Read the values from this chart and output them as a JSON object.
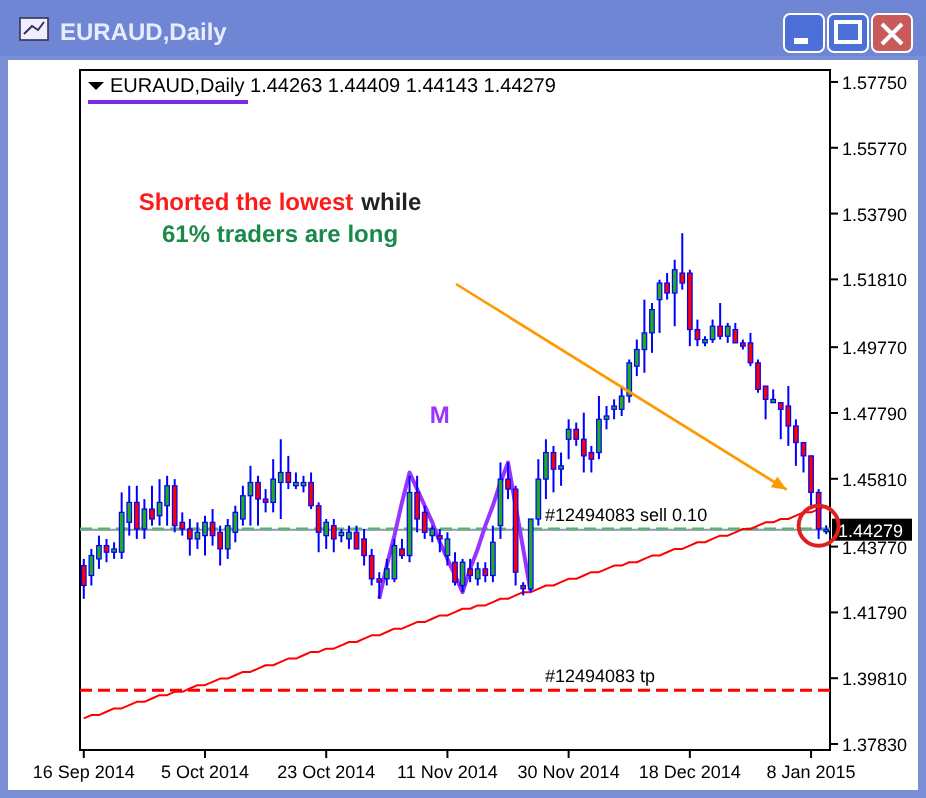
{
  "chart_data": {
    "type": "candlestick",
    "title": "EURAUD,Daily",
    "subtitle": "EURAUD,Daily 1.44263 1.44409 1.44143 1.44279",
    "categories": [
      "16 Sep 2014",
      null,
      null,
      null,
      null,
      null,
      null,
      null,
      null,
      null,
      null,
      null,
      null,
      null,
      null,
      null,
      "5 Oct 2014",
      null,
      null,
      null,
      null,
      null,
      null,
      null,
      null,
      null,
      null,
      null,
      null,
      null,
      null,
      null,
      "23 Oct 2014",
      null,
      null,
      null,
      null,
      null,
      null,
      null,
      null,
      null,
      null,
      null,
      null,
      null,
      null,
      null,
      "11 Nov 2014",
      null,
      null,
      null,
      null,
      null,
      null,
      null,
      null,
      null,
      null,
      null,
      null,
      null,
      null,
      null,
      "30 Nov 2014",
      null,
      null,
      null,
      null,
      null,
      null,
      null,
      null,
      null,
      null,
      null,
      null,
      null,
      null,
      null,
      "18 Dec 2014",
      null,
      null,
      null,
      null,
      null,
      null,
      null,
      null,
      null,
      null,
      null,
      null,
      null,
      null,
      null,
      "8 Jan 2015",
      null,
      null
    ],
    "ylim": [
      1.3765,
      1.5811
    ],
    "yticks": [
      {
        "value": 1.5775,
        "label": "1.57750"
      },
      {
        "value": 1.5577,
        "label": "1.55770"
      },
      {
        "value": 1.5379,
        "label": "1.53790"
      },
      {
        "value": 1.5181,
        "label": "1.51810"
      },
      {
        "value": 1.4977,
        "label": "1.49770"
      },
      {
        "value": 1.4779,
        "label": "1.47790"
      },
      {
        "value": 1.4581,
        "label": "1.45810"
      },
      {
        "value": 1.4377,
        "label": "1.43770"
      },
      {
        "value": 1.4179,
        "label": "1.41790"
      },
      {
        "value": 1.3981,
        "label": "1.39810"
      },
      {
        "value": 1.3783,
        "label": "1.37830"
      }
    ],
    "series": [
      {
        "type": "line",
        "color": "#ff0000",
        "values": [
          1.386,
          1.387,
          1.387,
          1.388,
          1.389,
          1.389,
          1.39,
          1.391,
          1.391,
          1.392,
          1.393,
          1.393,
          1.394,
          1.394,
          1.395,
          1.396,
          1.396,
          1.397,
          1.398,
          1.398,
          1.399,
          1.4,
          1.4,
          1.401,
          1.402,
          1.402,
          1.403,
          1.404,
          1.404,
          1.405,
          1.406,
          1.406,
          1.407,
          1.407,
          1.408,
          1.409,
          1.409,
          1.41,
          1.411,
          1.411,
          1.412,
          1.413,
          1.413,
          1.414,
          1.415,
          1.415,
          1.416,
          1.417,
          1.417,
          1.418,
          1.419,
          1.419,
          1.42,
          1.42,
          1.421,
          1.422,
          1.422,
          1.423,
          1.424,
          1.424,
          1.425,
          1.426,
          1.426,
          1.427,
          1.428,
          1.428,
          1.429,
          1.43,
          1.43,
          1.431,
          1.432,
          1.432,
          1.433,
          1.433,
          1.434,
          1.435,
          1.435,
          1.436,
          1.437,
          1.437,
          1.438,
          1.439,
          1.439,
          1.44,
          1.441,
          1.441,
          1.442,
          1.443,
          1.443,
          1.444,
          1.445,
          1.445,
          1.446,
          1.446,
          1.447,
          1.448,
          1.448,
          1.449,
          1.45
        ]
      },
      {
        "type": "line",
        "color": "#9933ff",
        "values": [
          null,
          null,
          null,
          null,
          null,
          null,
          null,
          null,
          null,
          null,
          null,
          null,
          null,
          null,
          null,
          null,
          null,
          null,
          null,
          null,
          null,
          null,
          null,
          null,
          null,
          null,
          null,
          null,
          null,
          null,
          null,
          null,
          null,
          null,
          null,
          null,
          null,
          null,
          null,
          1.422,
          1.432,
          1.441,
          1.451,
          1.46,
          1.455,
          1.45,
          1.445,
          1.439,
          1.434,
          1.429,
          1.424,
          1.431,
          1.437,
          1.444,
          1.45,
          1.457,
          1.463,
          1.45,
          1.437,
          1.424,
          null,
          null,
          null,
          null,
          null,
          null,
          null,
          null,
          null,
          null,
          null,
          null,
          null,
          null,
          null,
          null,
          null,
          null,
          null,
          null,
          null,
          null,
          null,
          null,
          null,
          null,
          null,
          null,
          null,
          null,
          null,
          null,
          null,
          null,
          null,
          null,
          null,
          null,
          null
        ]
      },
      {
        "type": "candlestick",
        "color": "#0000ff",
        "colors": [
          "#ff0000",
          "#22aa22",
          "#22aa22",
          "#ff0000",
          "#22aa22",
          "#22aa22",
          "#22aa22",
          "#ff0000",
          "#22aa22",
          "#ff0000",
          "#22aa22",
          "#22aa22",
          "#ff0000",
          "#ff0000",
          "#ff0000",
          "#22aa22",
          "#22aa22",
          "#ff0000",
          "#ff0000",
          "#22aa22",
          "#22aa22",
          "#22aa22",
          "#22aa22",
          "#ff0000",
          "#ff0000",
          "#22aa22",
          "#22aa22",
          "#ff0000",
          "#22aa22",
          "#22aa22",
          "#ff0000",
          "#ff0000",
          "#22aa22",
          "#ff0000",
          "#22aa22",
          "#22aa22",
          "#ff0000",
          "#ff0000",
          "#ff0000",
          "#ff0000",
          "#22aa22",
          "#22aa22",
          "#ff0000",
          "#22aa22",
          "#ff0000",
          "#ff0000",
          "#22aa22",
          "#ff0000",
          "#22aa22",
          "#ff0000",
          "#22aa22",
          "#ff0000",
          "#22aa22",
          "#ff0000",
          "#22aa22",
          "#22aa22",
          "#ff0000",
          "#ff0000",
          "#ff0000",
          "#22aa22",
          "#22aa22",
          "#22aa22",
          "#ff0000",
          "#22aa22",
          "#22aa22",
          "#ff0000",
          "#ff0000",
          "#ff0000",
          "#22aa22",
          "#22aa22",
          "#22aa22",
          "#22aa22",
          "#22aa22",
          "#22aa22",
          "#22aa22",
          "#22aa22",
          "#22aa22",
          "#ff0000",
          "#22aa22",
          "#ff0000",
          "#ff0000",
          "#ff0000",
          "#22aa22",
          "#22aa22",
          "#ff0000",
          "#22aa22",
          "#ff0000",
          "#ff0000",
          "#ff0000",
          "#ff0000",
          "#ff0000",
          "#22aa22",
          "#ff0000",
          "#ff0000",
          "#ff0000",
          "#ff0000",
          "#ff0000",
          "#ff0000",
          "#22aa22"
        ],
        "ohlc": [
          [
            1.432,
            1.434,
            1.422,
            1.426
          ],
          [
            1.429,
            1.437,
            1.426,
            1.435
          ],
          [
            1.434,
            1.441,
            1.431,
            1.438
          ],
          [
            1.438,
            1.44,
            1.433,
            1.436
          ],
          [
            1.436,
            1.439,
            1.434,
            1.437
          ],
          [
            1.436,
            1.454,
            1.434,
            1.448
          ],
          [
            1.445,
            1.456,
            1.441,
            1.451
          ],
          [
            1.451,
            1.456,
            1.44,
            1.443
          ],
          [
            1.443,
            1.452,
            1.44,
            1.449
          ],
          [
            1.449,
            1.456,
            1.444,
            1.446
          ],
          [
            1.447,
            1.458,
            1.444,
            1.451
          ],
          [
            1.45,
            1.459,
            1.444,
            1.456
          ],
          [
            1.456,
            1.458,
            1.442,
            1.444
          ],
          [
            1.445,
            1.448,
            1.441,
            1.443
          ],
          [
            1.443,
            1.446,
            1.435,
            1.44
          ],
          [
            1.44,
            1.445,
            1.437,
            1.442
          ],
          [
            1.441,
            1.447,
            1.435,
            1.445
          ],
          [
            1.445,
            1.449,
            1.438,
            1.441
          ],
          [
            1.442,
            1.444,
            1.432,
            1.437
          ],
          [
            1.437,
            1.446,
            1.434,
            1.444
          ],
          [
            1.442,
            1.45,
            1.439,
            1.448
          ],
          [
            1.446,
            1.456,
            1.444,
            1.453
          ],
          [
            1.453,
            1.462,
            1.444,
            1.457
          ],
          [
            1.457,
            1.459,
            1.444,
            1.452
          ],
          [
            1.452,
            1.455,
            1.448,
            1.451
          ],
          [
            1.451,
            1.464,
            1.448,
            1.458
          ],
          [
            1.457,
            1.47,
            1.446,
            1.46
          ],
          [
            1.46,
            1.465,
            1.455,
            1.457
          ],
          [
            1.456,
            1.46,
            1.455,
            1.457
          ],
          [
            1.456,
            1.459,
            1.454,
            1.457
          ],
          [
            1.457,
            1.46,
            1.449,
            1.45
          ],
          [
            1.45,
            1.451,
            1.436,
            1.442
          ],
          [
            1.441,
            1.446,
            1.437,
            1.445
          ],
          [
            1.444,
            1.446,
            1.436,
            1.44
          ],
          [
            1.441,
            1.443,
            1.439,
            1.442
          ],
          [
            1.44,
            1.444,
            1.437,
            1.442
          ],
          [
            1.442,
            1.444,
            1.437,
            1.437
          ],
          [
            1.44,
            1.443,
            1.432,
            1.435
          ],
          [
            1.435,
            1.437,
            1.426,
            1.428
          ],
          [
            1.428,
            1.43,
            1.422,
            1.427
          ],
          [
            1.428,
            1.434,
            1.426,
            1.431
          ],
          [
            1.428,
            1.44,
            1.427,
            1.438
          ],
          [
            1.437,
            1.44,
            1.434,
            1.435
          ],
          [
            1.435,
            1.459,
            1.433,
            1.454
          ],
          [
            1.454,
            1.459,
            1.442,
            1.446
          ],
          [
            1.448,
            1.45,
            1.44,
            1.442
          ],
          [
            1.441,
            1.444,
            1.439,
            1.443
          ],
          [
            1.441,
            1.443,
            1.436,
            1.44
          ],
          [
            1.435,
            1.442,
            1.432,
            1.44
          ],
          [
            1.433,
            1.436,
            1.426,
            1.427
          ],
          [
            1.426,
            1.434,
            1.424,
            1.433
          ],
          [
            1.431,
            1.434,
            1.427,
            1.429
          ],
          [
            1.428,
            1.433,
            1.426,
            1.431
          ],
          [
            1.431,
            1.433,
            1.427,
            1.429
          ],
          [
            1.429,
            1.444,
            1.427,
            1.439
          ],
          [
            1.444,
            1.463,
            1.44,
            1.458
          ],
          [
            1.458,
            1.463,
            1.452,
            1.455
          ],
          [
            1.455,
            1.456,
            1.426,
            1.43
          ],
          [
            1.426,
            1.427,
            1.423,
            1.425
          ],
          [
            1.425,
            1.446,
            1.424,
            1.446
          ],
          [
            1.446,
            1.464,
            1.444,
            1.458
          ],
          [
            1.458,
            1.47,
            1.452,
            1.466
          ],
          [
            1.466,
            1.468,
            1.454,
            1.461
          ],
          [
            1.461,
            1.466,
            1.456,
            1.462
          ],
          [
            1.47,
            1.476,
            1.464,
            1.473
          ],
          [
            1.473,
            1.475,
            1.468,
            1.47
          ],
          [
            1.47,
            1.478,
            1.46,
            1.465
          ],
          [
            1.466,
            1.468,
            1.46,
            1.464
          ],
          [
            1.466,
            1.483,
            1.464,
            1.476
          ],
          [
            1.476,
            1.48,
            1.473,
            1.477
          ],
          [
            1.479,
            1.482,
            1.476,
            1.48
          ],
          [
            1.479,
            1.486,
            1.477,
            1.483
          ],
          [
            1.483,
            1.494,
            1.481,
            1.493
          ],
          [
            1.492,
            1.5,
            1.489,
            1.497
          ],
          [
            1.497,
            1.512,
            1.49,
            1.502
          ],
          [
            1.502,
            1.511,
            1.496,
            1.509
          ],
          [
            1.512,
            1.518,
            1.502,
            1.517
          ],
          [
            1.517,
            1.52,
            1.512,
            1.514
          ],
          [
            1.514,
            1.524,
            1.504,
            1.521
          ],
          [
            1.52,
            1.532,
            1.515,
            1.517
          ],
          [
            1.52,
            1.521,
            1.498,
            1.503
          ],
          [
            1.503,
            1.506,
            1.498,
            1.5
          ],
          [
            1.499,
            1.501,
            1.498,
            1.5
          ],
          [
            1.5,
            1.506,
            1.499,
            1.504
          ],
          [
            1.504,
            1.511,
            1.5,
            1.501
          ],
          [
            1.501,
            1.505,
            1.499,
            1.504
          ],
          [
            1.503,
            1.505,
            1.499,
            1.499
          ],
          [
            1.499,
            1.5,
            1.497,
            1.498
          ],
          [
            1.499,
            1.502,
            1.492,
            1.493
          ],
          [
            1.493,
            1.494,
            1.484,
            1.485
          ],
          [
            1.486,
            1.486,
            1.476,
            1.482
          ],
          [
            1.481,
            1.485,
            1.481,
            1.482
          ],
          [
            1.481,
            1.481,
            1.47,
            1.479
          ],
          [
            1.48,
            1.486,
            1.468,
            1.474
          ],
          [
            1.474,
            1.476,
            1.462,
            1.469
          ],
          [
            1.469,
            1.469,
            1.46,
            1.465
          ],
          [
            1.465,
            1.465,
            1.45,
            1.454
          ],
          [
            1.454,
            1.455,
            1.44,
            1.443
          ],
          [
            1.44263,
            1.44409,
            1.44143,
            1.44279
          ]
        ]
      }
    ],
    "ref_lines": [
      {
        "axis": "y",
        "value": 1.443,
        "label": "#12494083 sell 0.10",
        "color": "#33cc33",
        "line_style": "dashed"
      },
      {
        "axis": "y",
        "value": 1.44279,
        "label": "1.44279",
        "color": "#8899aa",
        "line_style": "solid"
      },
      {
        "axis": "y",
        "value": 1.3945,
        "label": "#12494083 tp",
        "color": "#ff0000",
        "line_style": "dashed"
      }
    ],
    "annotations": [
      "Shorted the lowest",
      "while",
      "61% traders are long",
      "M"
    ],
    "marker": "none"
  }
}
